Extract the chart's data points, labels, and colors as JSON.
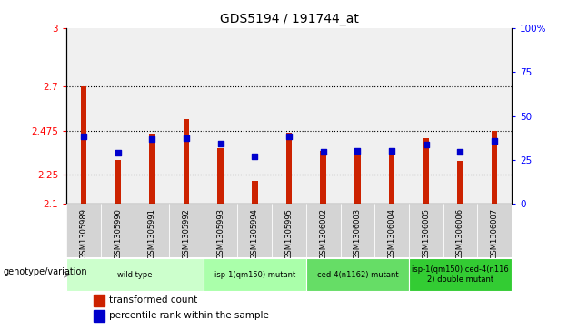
{
  "title": "GDS5194 / 191744_at",
  "samples": [
    "GSM1305989",
    "GSM1305990",
    "GSM1305991",
    "GSM1305992",
    "GSM1305993",
    "GSM1305994",
    "GSM1305995",
    "GSM1306002",
    "GSM1306003",
    "GSM1306004",
    "GSM1306005",
    "GSM1306006",
    "GSM1306007"
  ],
  "red_values": [
    2.7,
    2.325,
    2.46,
    2.535,
    2.385,
    2.22,
    2.465,
    2.37,
    2.375,
    2.375,
    2.435,
    2.32,
    2.475
  ],
  "blue_values_left": [
    2.445,
    2.36,
    2.43,
    2.435,
    2.41,
    2.345,
    2.445,
    2.365,
    2.37,
    2.37,
    2.405,
    2.365,
    2.425
  ],
  "ylim_left": [
    2.1,
    3.0
  ],
  "ylim_right": [
    0,
    100
  ],
  "yticks_left": [
    2.1,
    2.25,
    2.475,
    2.7,
    3.0
  ],
  "ytick_labels_left": [
    "2.1",
    "2.25",
    "2.475",
    "2.7",
    "3"
  ],
  "yticks_right": [
    0,
    25,
    50,
    75,
    100
  ],
  "ytick_labels_right": [
    "0",
    "25",
    "50",
    "75",
    "100%"
  ],
  "hlines": [
    2.25,
    2.475,
    2.7
  ],
  "bar_bottom": 2.1,
  "group_labels": [
    "wild type",
    "isp-1(qm150) mutant",
    "ced-4(n1162) mutant",
    "isp-1(qm150) ced-4(n116\n2) double mutant"
  ],
  "group_ranges": [
    [
      0,
      3
    ],
    [
      4,
      6
    ],
    [
      7,
      9
    ],
    [
      10,
      12
    ]
  ],
  "group_colors": [
    "#ccffcc",
    "#aaeebb",
    "#66cc66",
    "#33bb33"
  ],
  "legend_label_red": "transformed count",
  "legend_label_blue": "percentile rank within the sample",
  "xlabel_left": "genotype/variation",
  "red_color": "#cc2200",
  "blue_color": "#0000cc",
  "bar_width": 0.18,
  "sample_bg_color": "#d4d4d4",
  "plot_bg_color": "#ffffff"
}
